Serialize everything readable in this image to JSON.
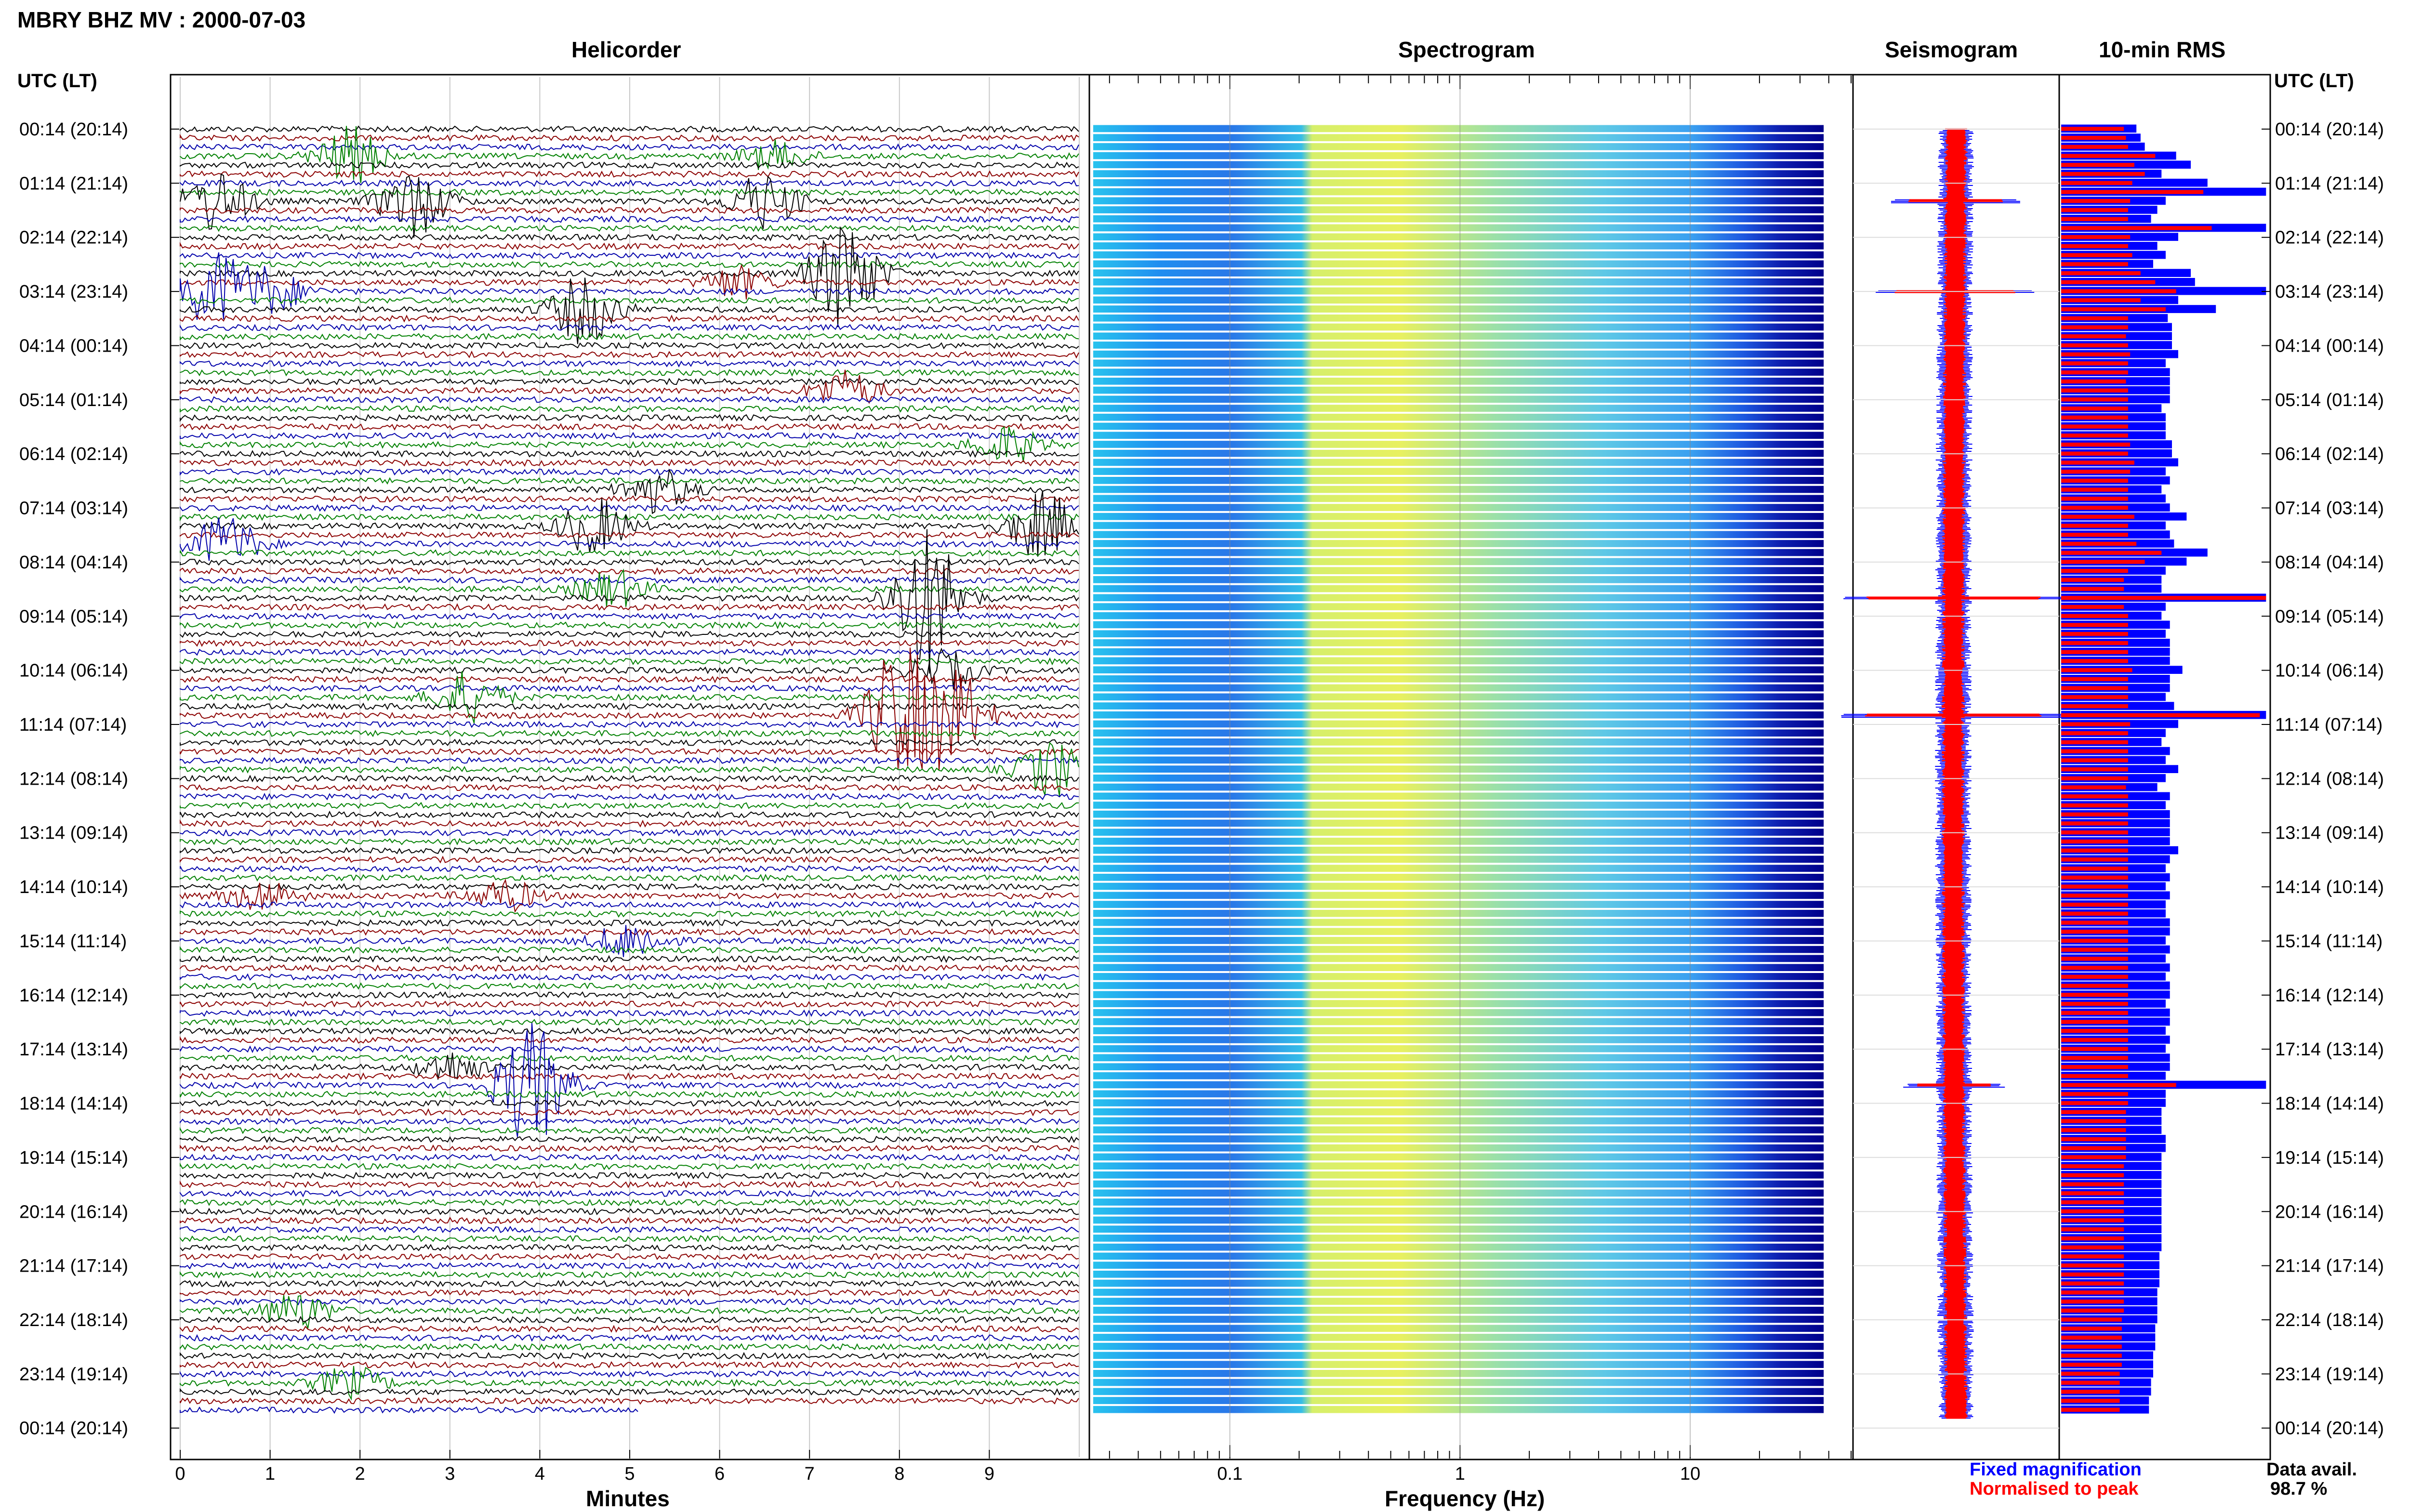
{
  "header": {
    "station_title": "MBRY BHZ MV : 2000-07-03",
    "time_axis_label_left": "UTC (LT)",
    "time_axis_label_right": "UTC (LT)"
  },
  "panels": {
    "helicorder_title": "Helicorder",
    "spectrogram_title": "Spectrogram",
    "seismogram_title": "Seismogram",
    "rms_title": "10-min RMS"
  },
  "legend": {
    "fixed": "Fixed magnification",
    "normalised": "Normalised to peak",
    "fixed_color": "#0000ff",
    "normalised_color": "#ff0000"
  },
  "availability": {
    "label": "Data avail.",
    "value": "98.7 %"
  },
  "chart_data": [
    {
      "type": "line",
      "title": "Helicorder",
      "xlabel": "Minutes",
      "x_ticks": [
        "0",
        "1",
        "2",
        "3",
        "4",
        "5",
        "6",
        "7",
        "8",
        "9"
      ],
      "xlim": [
        0,
        10
      ],
      "row_colors": [
        "#000000",
        "#8b0000",
        "#0000aa",
        "#008000"
      ],
      "row_count": 143,
      "y_ticks": [
        "00:14 (20:14)",
        "01:14 (21:14)",
        "02:14 (22:14)",
        "03:14 (23:14)",
        "04:14 (00:14)",
        "05:14 (01:14)",
        "06:14 (02:14)",
        "07:14 (03:14)",
        "08:14 (04:14)",
        "09:14 (05:14)",
        "10:14 (06:14)",
        "11:14 (07:14)",
        "12:14 (08:14)",
        "13:14 (09:14)",
        "14:14 (10:14)",
        "15:14 (11:14)",
        "16:14 (12:14)",
        "17:14 (13:14)",
        "18:14 (14:14)",
        "19:14 (15:14)",
        "20:14 (16:14)",
        "21:14 (17:14)",
        "22:14 (18:14)",
        "23:14 (19:14)",
        "00:14 (20:14)"
      ],
      "events": [
        {
          "row": 3,
          "minute": 1.9,
          "amp": 0.45,
          "color": "#000000"
        },
        {
          "row": 3,
          "minute": 6.6,
          "amp": 0.22,
          "color": "#008000"
        },
        {
          "row": 8,
          "minute": 0.4,
          "amp": 0.5,
          "color": "#8b0000"
        },
        {
          "row": 8,
          "minute": 2.6,
          "amp": 0.55,
          "color": "#8b0000"
        },
        {
          "row": 8,
          "minute": 6.5,
          "amp": 0.45,
          "color": "#8b0000"
        },
        {
          "row": 16,
          "minute": 7.4,
          "amp": 0.9,
          "color": "#000000"
        },
        {
          "row": 17,
          "minute": 6.2,
          "amp": 0.25,
          "color": "#8b0000"
        },
        {
          "row": 18,
          "minute": 0.4,
          "amp": 0.6,
          "color": "#0000aa"
        },
        {
          "row": 18,
          "minute": 1.0,
          "amp": 0.35,
          "color": "#000000"
        },
        {
          "row": 20,
          "minute": 4.5,
          "amp": 0.55,
          "color": "#000000"
        },
        {
          "row": 29,
          "minute": 7.4,
          "amp": 0.3,
          "color": "#000000"
        },
        {
          "row": 35,
          "minute": 9.2,
          "amp": 0.3,
          "color": "#008000"
        },
        {
          "row": 40,
          "minute": 5.3,
          "amp": 0.35,
          "color": "#8b0000"
        },
        {
          "row": 44,
          "minute": 4.6,
          "amp": 0.45,
          "color": "#000000"
        },
        {
          "row": 44,
          "minute": 9.6,
          "amp": 0.55,
          "color": "#000000"
        },
        {
          "row": 46,
          "minute": 0.5,
          "amp": 0.45,
          "color": "#0000aa"
        },
        {
          "row": 52,
          "minute": 8.3,
          "amp": 1.2,
          "color": "#008000"
        },
        {
          "row": 51,
          "minute": 4.8,
          "amp": 0.3,
          "color": "#8b0000"
        },
        {
          "row": 60,
          "minute": 8.5,
          "amp": 0.3,
          "color": "#008000"
        },
        {
          "row": 63,
          "minute": 3.2,
          "amp": 0.4,
          "color": "#0000aa"
        },
        {
          "row": 65,
          "minute": 8.0,
          "amp": 1.1,
          "color": "#0000aa"
        },
        {
          "row": 65,
          "minute": 8.6,
          "amp": 0.75,
          "color": "#0000aa"
        },
        {
          "row": 71,
          "minute": 9.7,
          "amp": 0.45,
          "color": "#008000"
        },
        {
          "row": 85,
          "minute": 0.9,
          "amp": 0.25,
          "color": "#000000"
        },
        {
          "row": 85,
          "minute": 3.6,
          "amp": 0.25,
          "color": "#000000"
        },
        {
          "row": 90,
          "minute": 5.0,
          "amp": 0.3,
          "color": "#8b0000"
        },
        {
          "row": 104,
          "minute": 3.0,
          "amp": 0.25,
          "color": "#008000"
        },
        {
          "row": 106,
          "minute": 3.9,
          "amp": 1.0,
          "color": "#0000aa"
        },
        {
          "row": 131,
          "minute": 1.3,
          "amp": 0.3,
          "color": "#8b0000"
        },
        {
          "row": 139,
          "minute": 1.9,
          "amp": 0.25,
          "color": "#000000"
        }
      ],
      "last_row_end_minute": 5.1
    },
    {
      "type": "heatmap",
      "title": "Spectrogram",
      "xlabel": "Frequency (Hz)",
      "x_scale": "log",
      "xlim": [
        0.025,
        50
      ],
      "data_xlim": [
        0.025,
        38
      ],
      "x_ticks": [
        "0.1",
        "1",
        "10"
      ],
      "colormap": [
        "#00008b",
        "#0040ff",
        "#00c0ff",
        "#80ff80",
        "#ffff00",
        "#ff8000",
        "#ff0000"
      ],
      "relative_power_by_band": [
        {
          "hz_from": 0.025,
          "hz_to": 0.08,
          "level": 0.42
        },
        {
          "hz_from": 0.08,
          "hz_to": 0.2,
          "level": 0.3
        },
        {
          "hz_from": 0.2,
          "hz_to": 0.25,
          "level": 0.6
        },
        {
          "hz_from": 0.25,
          "hz_to": 0.8,
          "level": 0.66
        },
        {
          "hz_from": 0.8,
          "hz_to": 3,
          "level": 0.52
        },
        {
          "hz_from": 3,
          "hz_to": 8,
          "level": 0.4
        },
        {
          "hz_from": 8,
          "hz_to": 20,
          "level": 0.28
        },
        {
          "hz_from": 20,
          "hz_to": 38,
          "level": 0.05
        }
      ]
    },
    {
      "type": "line",
      "title": "Seismogram",
      "series": [
        {
          "name": "Fixed magnification",
          "color": "#0000ff"
        },
        {
          "name": "Normalised to peak",
          "color": "#ff0000"
        }
      ],
      "spikes": [
        {
          "row": 8,
          "amp": 0.5
        },
        {
          "row": 18,
          "amp": 0.65
        },
        {
          "row": 52,
          "amp": 1.0
        },
        {
          "row": 65,
          "amp": 1.0
        },
        {
          "row": 106,
          "amp": 0.35
        }
      ]
    },
    {
      "type": "bar",
      "title": "10-min RMS",
      "series": [
        {
          "name": "Fixed magnification",
          "color": "#0000ff"
        },
        {
          "name": "Normalised to peak",
          "color": "#ff0000"
        }
      ],
      "bar_count": 143,
      "blue_values": [
        0.36,
        0.38,
        0.4,
        0.55,
        0.62,
        0.48,
        0.7,
        0.98,
        0.5,
        0.46,
        0.43,
        0.98,
        0.56,
        0.46,
        0.5,
        0.44,
        0.62,
        0.64,
        0.98,
        0.56,
        0.74,
        0.51,
        0.53,
        0.53,
        0.53,
        0.56,
        0.5,
        0.52,
        0.52,
        0.52,
        0.52,
        0.48,
        0.5,
        0.5,
        0.5,
        0.53,
        0.53,
        0.56,
        0.5,
        0.52,
        0.48,
        0.5,
        0.52,
        0.6,
        0.5,
        0.52,
        0.54,
        0.7,
        0.6,
        0.5,
        0.48,
        0.48,
        0.98,
        0.5,
        0.48,
        0.52,
        0.5,
        0.52,
        0.52,
        0.52,
        0.58,
        0.52,
        0.52,
        0.5,
        0.54,
        0.98,
        0.56,
        0.5,
        0.48,
        0.52,
        0.5,
        0.56,
        0.5,
        0.46,
        0.52,
        0.5,
        0.52,
        0.52,
        0.52,
        0.52,
        0.56,
        0.52,
        0.5,
        0.52,
        0.5,
        0.52,
        0.5,
        0.5,
        0.52,
        0.52,
        0.5,
        0.52,
        0.5,
        0.52,
        0.5,
        0.52,
        0.52,
        0.5,
        0.52,
        0.52,
        0.5,
        0.52,
        0.5,
        0.52,
        0.52,
        0.5,
        0.98,
        0.5,
        0.5,
        0.48,
        0.48,
        0.48,
        0.5,
        0.5,
        0.48,
        0.48,
        0.48,
        0.48,
        0.48,
        0.48,
        0.48,
        0.48,
        0.48,
        0.48,
        0.48,
        0.47,
        0.47,
        0.47,
        0.47,
        0.46,
        0.46,
        0.46,
        0.46,
        0.45,
        0.45,
        0.45,
        0.44,
        0.44,
        0.44,
        0.43,
        0.43,
        0.42,
        0.42
      ],
      "red_values": [
        0.3,
        0.31,
        0.32,
        0.45,
        0.35,
        0.4,
        0.34,
        0.68,
        0.33,
        0.32,
        0.32,
        0.72,
        0.33,
        0.32,
        0.34,
        0.32,
        0.38,
        0.45,
        0.55,
        0.38,
        0.5,
        0.32,
        0.32,
        0.31,
        0.32,
        0.33,
        0.32,
        0.32,
        0.31,
        0.32,
        0.32,
        0.32,
        0.32,
        0.32,
        0.32,
        0.33,
        0.32,
        0.35,
        0.33,
        0.32,
        0.32,
        0.32,
        0.32,
        0.35,
        0.32,
        0.32,
        0.36,
        0.48,
        0.4,
        0.32,
        0.3,
        0.3,
        0.98,
        0.3,
        0.32,
        0.32,
        0.32,
        0.32,
        0.32,
        0.32,
        0.34,
        0.32,
        0.32,
        0.32,
        0.32,
        0.95,
        0.33,
        0.32,
        0.32,
        0.32,
        0.32,
        0.32,
        0.32,
        0.31,
        0.32,
        0.32,
        0.32,
        0.32,
        0.32,
        0.32,
        0.32,
        0.32,
        0.32,
        0.32,
        0.32,
        0.32,
        0.32,
        0.32,
        0.32,
        0.32,
        0.32,
        0.32,
        0.32,
        0.32,
        0.32,
        0.32,
        0.32,
        0.32,
        0.32,
        0.32,
        0.32,
        0.32,
        0.32,
        0.32,
        0.32,
        0.32,
        0.55,
        0.32,
        0.32,
        0.31,
        0.31,
        0.31,
        0.31,
        0.31,
        0.31,
        0.3,
        0.3,
        0.3,
        0.3,
        0.3,
        0.3,
        0.3,
        0.3,
        0.3,
        0.3,
        0.3,
        0.3,
        0.3,
        0.3,
        0.3,
        0.3,
        0.3,
        0.29,
        0.29,
        0.29,
        0.29,
        0.29,
        0.29,
        0.28,
        0.28,
        0.28,
        0.28,
        0.28
      ]
    }
  ]
}
